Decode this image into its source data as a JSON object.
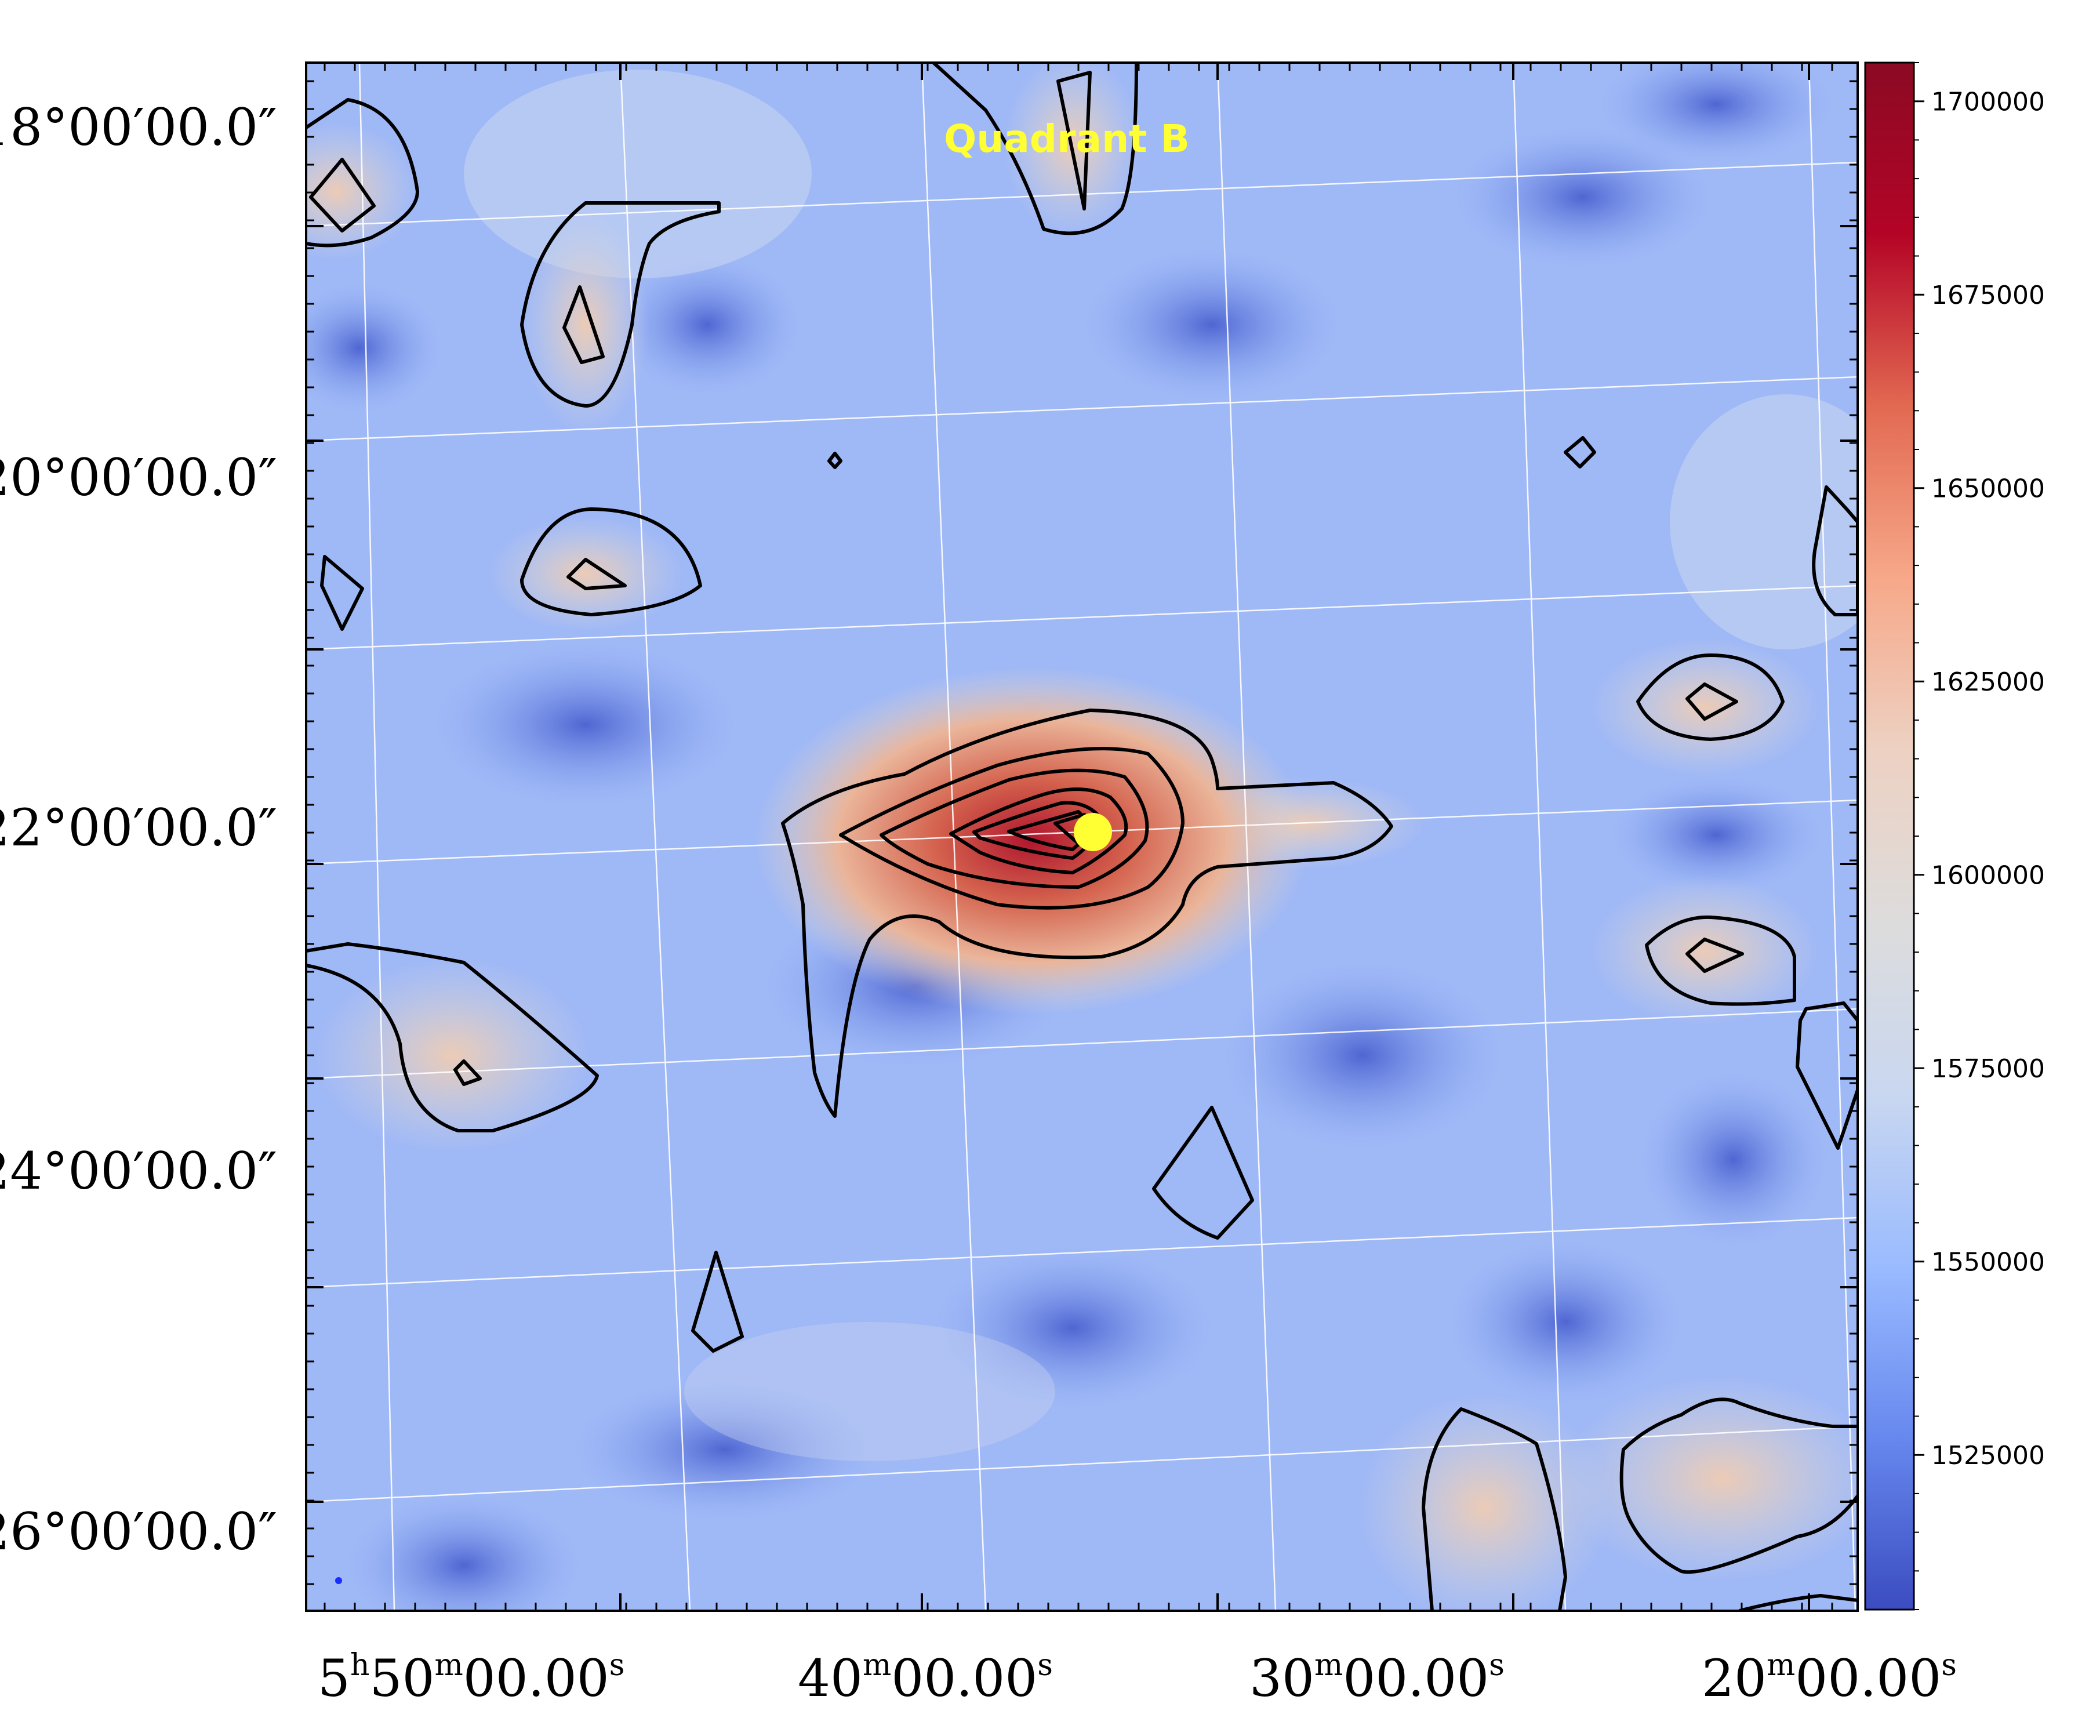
{
  "chart_data": {
    "type": "heatmap",
    "title": "",
    "annotation": "Quadrant B",
    "colormap": "coolwarm",
    "x_axis": {
      "label": "",
      "ticks": [
        {
          "h": "5",
          "m": "50",
          "s": "00.00",
          "text": "5h50m00.00s"
        },
        {
          "m": "40",
          "s": "00.00",
          "text": "40m00.00s"
        },
        {
          "m": "30",
          "s": "00.00",
          "text": "30m00.00s"
        },
        {
          "m": "20",
          "s": "00.00",
          "text": "20m00.00s"
        }
      ]
    },
    "y_axis": {
      "label": "",
      "ticks": [
        "18°00′00.0″",
        "20°00′00.0″",
        "22°00′00.0″",
        "24°00′00.0″",
        "26°00′00.0″"
      ]
    },
    "colorbar": {
      "min": 1505000,
      "max": 1705000,
      "ticks": [
        "1700000",
        "1675000",
        "1650000",
        "1625000",
        "1600000",
        "1575000",
        "1550000",
        "1525000"
      ],
      "colors": [
        "#3b4cc0",
        "#6788ee",
        "#9abbff",
        "#c9d7f0",
        "#dddcdc",
        "#edd1c2",
        "#f7a889",
        "#e26952",
        "#b40426",
        "#8b0a24"
      ]
    },
    "peak": {
      "ra": "5h36m",
      "dec": "22°00′",
      "value": 1700000,
      "marker_color": "#ffff33"
    },
    "contour_color": "#000000",
    "grid": true,
    "legend": "none"
  }
}
